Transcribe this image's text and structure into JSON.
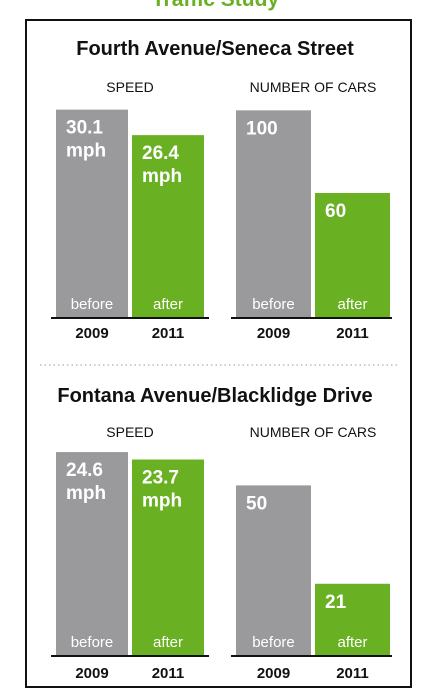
{
  "page": {
    "title": "Traffic Study"
  },
  "colors": {
    "before": "#9a9a9d",
    "after": "#6ab023",
    "axis": "#111111",
    "divider": "#bbbbbb"
  },
  "chart_data": [
    {
      "type": "bar",
      "title": "Fourth Avenue/Seneca Street",
      "panels": [
        {
          "label": "SPEED",
          "unit": "mph",
          "ylim": [
            0,
            31.5
          ],
          "categories": [
            "before",
            "after"
          ],
          "years": [
            "2009",
            "2011"
          ],
          "values": [
            30.1,
            26.4
          ],
          "value_labels": [
            "30.1",
            "26.4"
          ]
        },
        {
          "label": "NUMBER OF CARS",
          "unit": "",
          "ylim": [
            0,
            105
          ],
          "categories": [
            "before",
            "after"
          ],
          "years": [
            "2009",
            "2011"
          ],
          "values": [
            100,
            60
          ],
          "value_labels": [
            "100",
            "60"
          ]
        }
      ]
    },
    {
      "type": "bar",
      "title": "Fontana Avenue/Blacklidge Drive",
      "panels": [
        {
          "label": "SPEED",
          "unit": "mph",
          "ylim": [
            0,
            25.7
          ],
          "categories": [
            "before",
            "after"
          ],
          "years": [
            "2009",
            "2011"
          ],
          "values": [
            24.6,
            23.7
          ],
          "value_labels": [
            "24.6",
            "23.7"
          ]
        },
        {
          "label": "NUMBER OF CARS",
          "unit": "",
          "ylim": [
            0,
            62.5
          ],
          "categories": [
            "before",
            "after"
          ],
          "years": [
            "2009",
            "2011"
          ],
          "values": [
            50,
            21
          ],
          "value_labels": [
            "50",
            "21"
          ]
        }
      ]
    }
  ]
}
